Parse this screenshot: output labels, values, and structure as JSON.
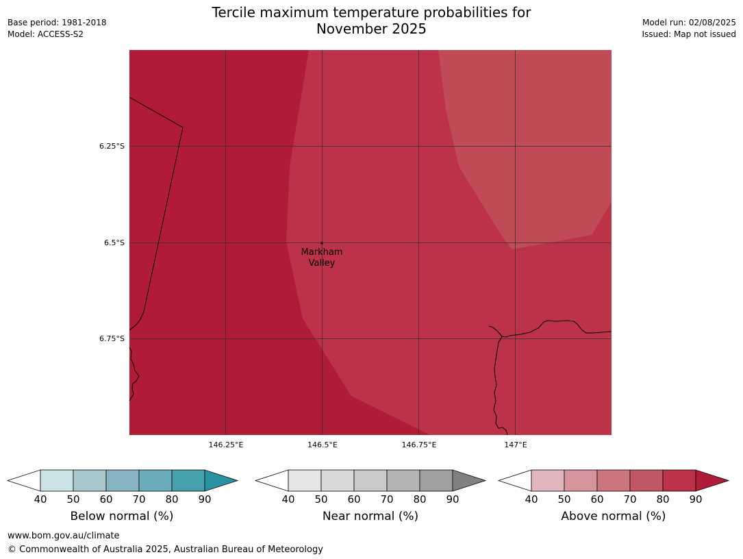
{
  "header": {
    "title_line1": "Tercile maximum temperature probabilities for",
    "title_line2": "November 2025",
    "base_period": "Base period: 1981-2018",
    "model": "Model: ACCESS-S2",
    "model_run": "Model run: 02/08/2025",
    "issued": "Issued: Map not issued"
  },
  "map": {
    "lat_ticks": [
      "6.25°S",
      "6.5°S",
      "6.75°S"
    ],
    "lon_ticks": [
      "146.25°E",
      "146.5°E",
      "146.75°E",
      "147°E"
    ],
    "location": {
      "name_line1": "Markham",
      "name_line2": "Valley"
    },
    "colors": {
      "above_90": "#b01c37",
      "above_80": "#bc3249",
      "above_70": "#c04a56",
      "grid": "#333333",
      "coast": "#000000"
    }
  },
  "legends": [
    {
      "label": "Below normal (%)",
      "ticks": [
        "40",
        "50",
        "60",
        "70",
        "80",
        "90"
      ],
      "colors": [
        "#ffffff",
        "#cbe2e7",
        "#a8c8ce",
        "#88b4c1",
        "#6aacb9",
        "#46a0ae",
        "#2a93a3"
      ]
    },
    {
      "label": "Near normal (%)",
      "ticks": [
        "40",
        "50",
        "60",
        "70",
        "80",
        "90"
      ],
      "colors": [
        "#ffffff",
        "#e5e5e5",
        "#d9d9d9",
        "#c9c9c9",
        "#b4b4b4",
        "#a0a0a0",
        "#808080"
      ]
    },
    {
      "label": "Above normal (%)",
      "ticks": [
        "40",
        "50",
        "60",
        "70",
        "80",
        "90"
      ],
      "colors": [
        "#ffffff",
        "#e1b6bc",
        "#d6949c",
        "#cb757f",
        "#c25766",
        "#bc3249",
        "#b01c37"
      ]
    }
  ],
  "footer": {
    "website": "www.bom.gov.au/climate",
    "copyright": "© Commonwealth of Australia 2025, Australian Bureau of Meteorology"
  }
}
